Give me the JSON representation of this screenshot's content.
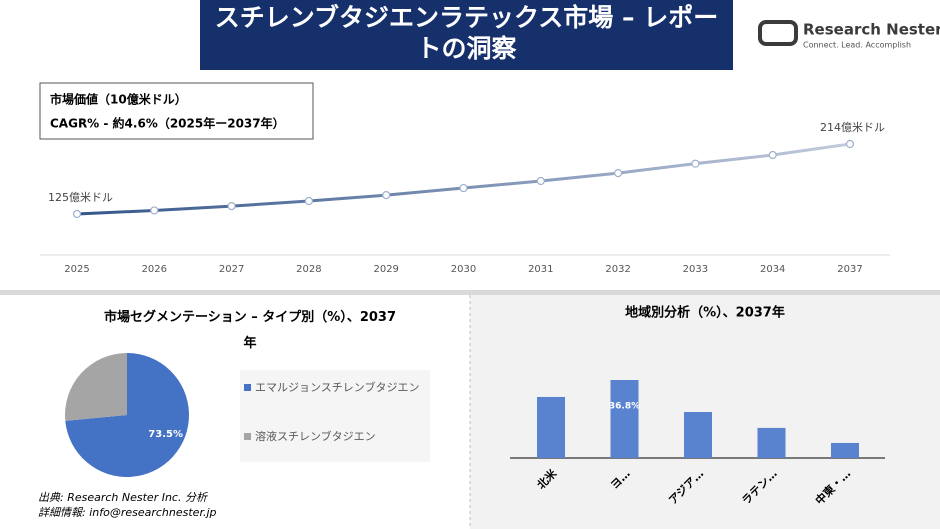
{
  "header": {
    "title": "スチレンブタジエンラテックス市場 – レポートの洞察",
    "logo_name": "Research Nester",
    "logo_tagline": "Connect. Lead. Accomplish"
  },
  "info": {
    "market_value": "市場価値（10億米ドル）",
    "cagr": "CAGR% - 約4.6%（2025年ー2037年）"
  },
  "chart_data": [
    {
      "type": "line",
      "categories": [
        "2025",
        "2026",
        "2027",
        "2028",
        "2029",
        "2030",
        "2031",
        "2032",
        "2033",
        "2034",
        "2037"
      ],
      "values": [
        125,
        129.5,
        135,
        141.5,
        149,
        158,
        167,
        177,
        189,
        200,
        214
      ],
      "value_labels": [
        "125億米ドル",
        null,
        null,
        null,
        null,
        null,
        null,
        null,
        null,
        null,
        "214億米ドル"
      ],
      "color_start": "#34568b",
      "color_end": "#c3cbdd"
    },
    {
      "type": "pie",
      "title": "市場セグメンテーション – タイプ別（%）、2037年",
      "categories": [
        "エマルジョンスチレンブタジエン",
        "溶液スチレンブタジエン"
      ],
      "values": [
        73.5,
        26.5
      ],
      "value_labels": [
        "73.5%",
        null
      ],
      "colors": [
        "#4472c4",
        "#a5a5a5"
      ]
    },
    {
      "type": "bar",
      "title": "地域別分析（%）、2037年",
      "categories": [
        "北米",
        "ヨ…",
        "アジア…",
        "ラテン…",
        "中東・…"
      ],
      "values": [
        28.8,
        36.8,
        21.7,
        14.2,
        7.1
      ],
      "value_labels": [
        null,
        "36.8%",
        null,
        null,
        null
      ],
      "color": "#5a83cf"
    }
  ],
  "footer": {
    "source": "出典: Research Nester Inc. 分析",
    "contact": "詳細情報: info@researchnester.jp"
  }
}
